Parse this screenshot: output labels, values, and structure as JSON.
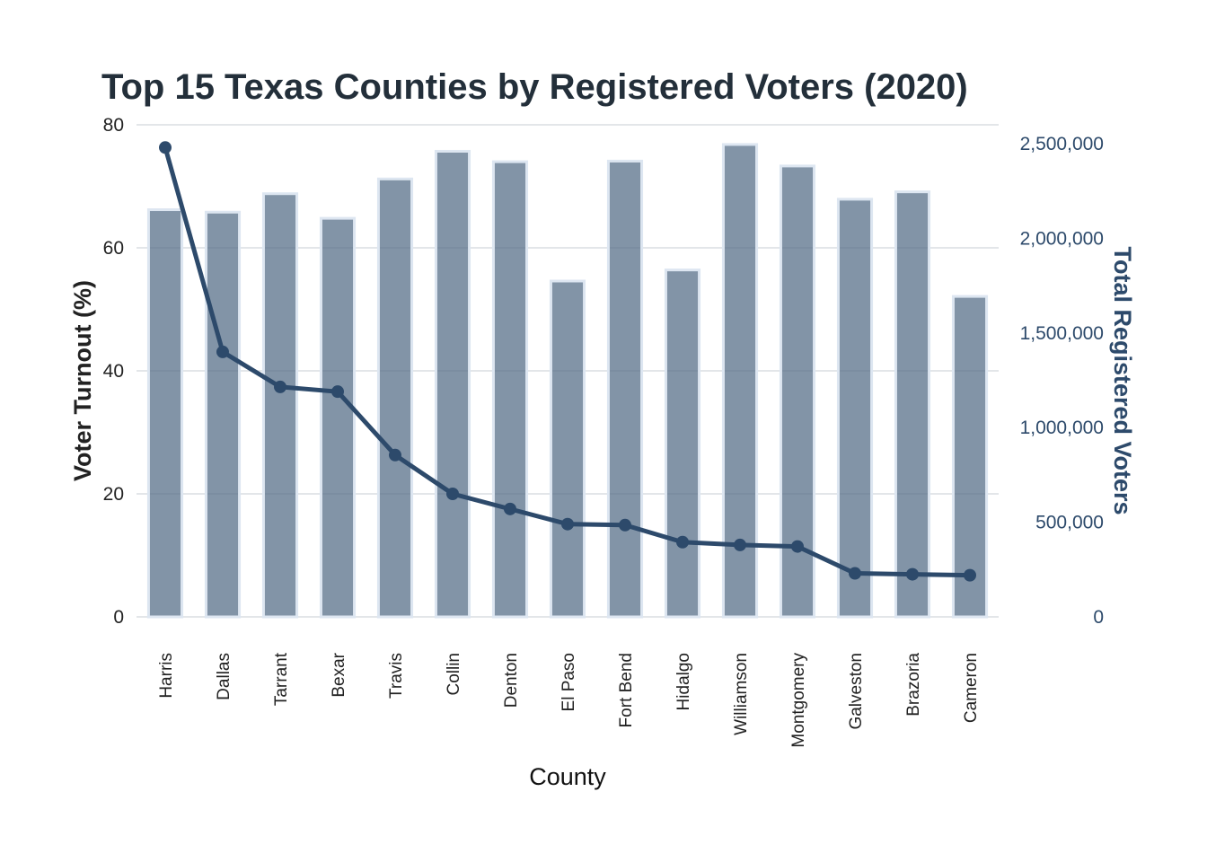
{
  "chart_data": {
    "type": "bar",
    "title": "Top 15 Texas Counties by Registered Voters (2020)",
    "xlabel": "County",
    "ylabel": "Voter Turnout (%)",
    "ylabel_right": "Total Registered Voters",
    "categories": [
      "Harris",
      "Dallas",
      "Tarrant",
      "Bexar",
      "Travis",
      "Collin",
      "Denton",
      "El Paso",
      "Fort Bend",
      "Hidalgo",
      "Williamson",
      "Montgomery",
      "Galveston",
      "Brazoria",
      "Cameron"
    ],
    "series": [
      {
        "axis": "left",
        "mark": "bar",
        "values": [
          66.2,
          65.8,
          68.8,
          64.8,
          71.2,
          75.7,
          74.0,
          54.6,
          74.1,
          56.4,
          76.8,
          73.3,
          67.9,
          69.1,
          52.1
        ]
      },
      {
        "axis": "right",
        "mark": "line",
        "values": [
          2480000,
          1400000,
          1215000,
          1190000,
          855000,
          650000,
          570000,
          490000,
          485000,
          395000,
          380000,
          372000,
          230000,
          225000,
          220000
        ]
      }
    ],
    "ylim": [
      0,
      80
    ],
    "ylim_right": [
      0,
      2600000
    ],
    "yticks_left": [
      "0",
      "20",
      "40",
      "60",
      "80"
    ],
    "yticks_right": [
      "0",
      "500,000",
      "1,000,000",
      "1,500,000",
      "2,000,000",
      "2,500,000"
    ],
    "grid": true,
    "colors": {
      "bar": "#536c86",
      "bar_edge": "#dde6f1",
      "line": "#2d4a6b",
      "grid": "#e3e6e9"
    }
  }
}
